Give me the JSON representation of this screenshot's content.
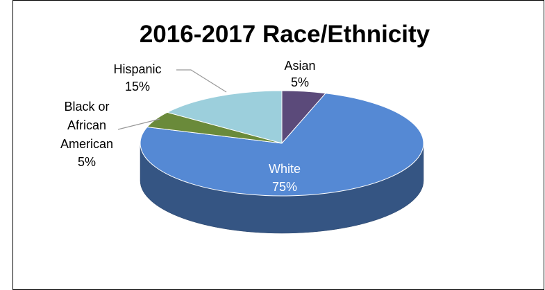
{
  "chart_data": {
    "type": "pie",
    "title": "2016-2017 Race/Ethnicity",
    "slices": [
      {
        "label": "Asian",
        "value": 5,
        "value_label": "5%",
        "color": "#5b4a7a"
      },
      {
        "label": "White",
        "value": 75,
        "value_label": "75%",
        "color": "#5589d4"
      },
      {
        "label": "Black or African American",
        "value": 5,
        "value_label": "5%",
        "color": "#6a8a3a"
      },
      {
        "label": "Hispanic",
        "value": 15,
        "value_label": "15%",
        "color": "#9ccfdc"
      }
    ],
    "style": "3d-tilted",
    "start_angle": "12 o'clock, clockwise"
  }
}
